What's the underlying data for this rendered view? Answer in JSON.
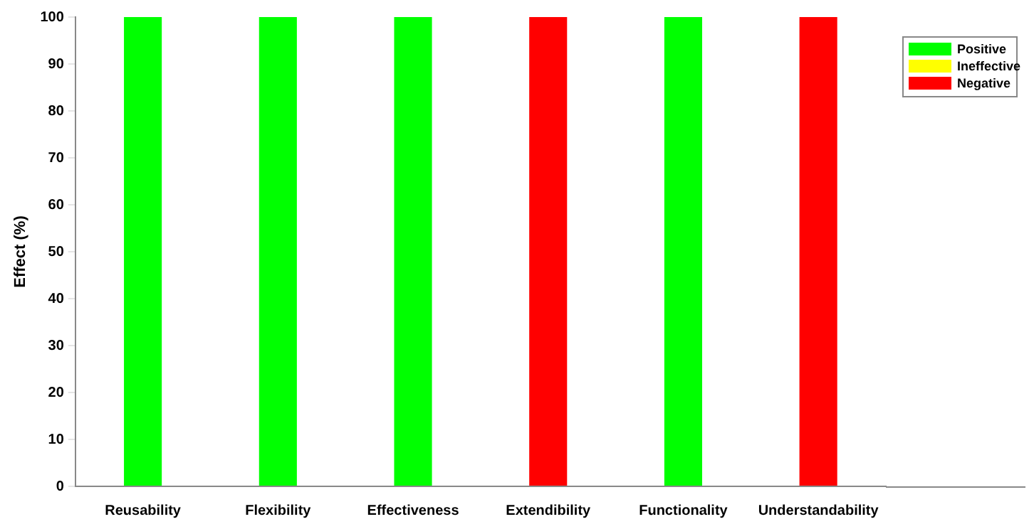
{
  "chart_data": {
    "type": "bar",
    "stacked": true,
    "ylabel": "Effect (%)",
    "categories": [
      "Reusability",
      "Flexibility",
      "Effectiveness",
      "Extendibility",
      "Functionality",
      "Understandability"
    ],
    "series": [
      {
        "name": "Positive",
        "color": "#00ff00",
        "values": [
          100,
          100,
          100,
          0,
          100,
          0
        ]
      },
      {
        "name": "Ineffective",
        "color": "#ffff00",
        "values": [
          0,
          0,
          0,
          0,
          0,
          0
        ]
      },
      {
        "name": "Negative",
        "color": "#ff0000",
        "values": [
          0,
          0,
          0,
          100,
          0,
          100
        ]
      }
    ],
    "ylim": [
      0,
      100
    ],
    "yticks": [
      0,
      10,
      20,
      30,
      40,
      50,
      60,
      70,
      80,
      90,
      100
    ],
    "grid": false,
    "legend": "top right"
  }
}
